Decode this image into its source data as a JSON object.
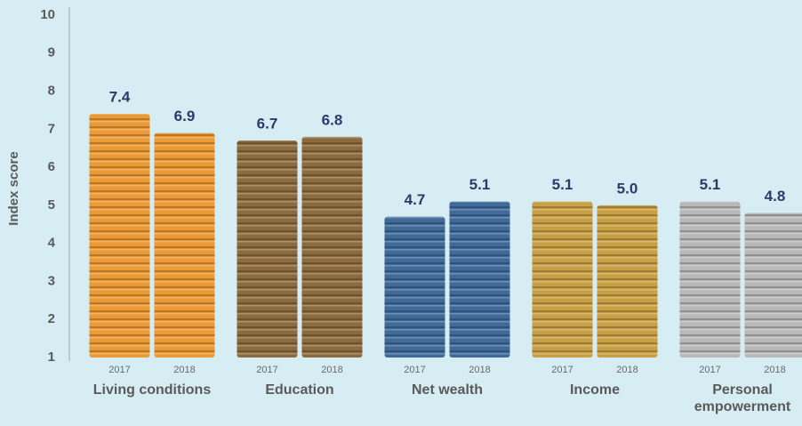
{
  "chart_data": {
    "type": "bar",
    "y_label": "Index score",
    "categories": [
      "Living conditions",
      "Education",
      "Net wealth",
      "Income",
      "Personal empowerment"
    ],
    "category_colors": [
      "#ec9a35",
      "#8c6b3e",
      "#3f6a9a",
      "#c9a045",
      "#b8b8b8"
    ],
    "series": [
      {
        "name": "2017",
        "values": [
          7.4,
          6.7,
          4.7,
          5.1,
          5.1
        ],
        "value_labels": [
          "7.4",
          "6.7",
          "4.7",
          "5.1",
          "5.1"
        ]
      },
      {
        "name": "2018",
        "values": [
          6.9,
          6.8,
          5.1,
          5.0,
          4.8
        ],
        "value_labels": [
          "6.9",
          "6.8",
          "5.1",
          "5.0",
          "4.8"
        ]
      }
    ],
    "ylim": [
      1,
      10
    ],
    "yticks": [
      1,
      2,
      3,
      4,
      5,
      6,
      7,
      8,
      9,
      10
    ],
    "grid": false
  }
}
